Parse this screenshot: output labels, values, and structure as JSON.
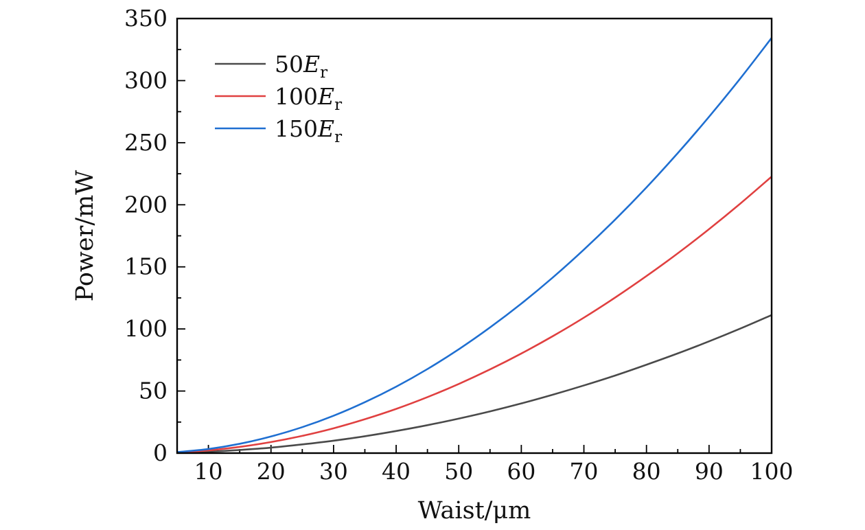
{
  "chart_data": {
    "type": "line",
    "xlabel": "Waist/μm",
    "ylabel": "Power/mW",
    "xlim": [
      5,
      100
    ],
    "ylim": [
      0,
      350
    ],
    "x_ticks": [
      10,
      20,
      30,
      40,
      50,
      60,
      70,
      80,
      90,
      100
    ],
    "y_ticks": [
      0,
      50,
      100,
      150,
      200,
      250,
      300,
      350
    ],
    "x_minor_step": 5,
    "y_minor_step": 25,
    "grid": false,
    "legend_position": "top-left",
    "x": [
      5,
      10,
      15,
      20,
      25,
      30,
      35,
      40,
      45,
      50,
      55,
      60,
      65,
      70,
      75,
      80,
      85,
      90,
      95,
      100
    ],
    "series": [
      {
        "name_value": "50",
        "name_symbol": "E",
        "name_subscript": "r",
        "color": "#4a4a4a",
        "values": [
          0.3,
          1.1,
          2.5,
          4.4,
          7.0,
          10.0,
          13.6,
          17.8,
          22.5,
          27.8,
          33.6,
          40.0,
          47.0,
          54.5,
          62.5,
          71.2,
          80.3,
          90.0,
          100.3,
          111.2
        ]
      },
      {
        "name_value": "100",
        "name_symbol": "E",
        "name_subscript": "r",
        "color": "#e04040",
        "values": [
          0.6,
          2.2,
          5.0,
          8.9,
          13.9,
          20.0,
          27.3,
          35.6,
          45.1,
          55.7,
          67.4,
          80.2,
          94.1,
          109.1,
          125.3,
          142.6,
          160.9,
          180.4,
          201.0,
          222.7
        ]
      },
      {
        "name_value": "150",
        "name_symbol": "E",
        "name_subscript": "r",
        "color": "#1f6fd1",
        "values": [
          0.8,
          3.3,
          7.5,
          13.4,
          20.9,
          30.1,
          41.0,
          53.5,
          67.7,
          83.6,
          101.2,
          120.4,
          141.3,
          163.9,
          188.1,
          214.0,
          241.6,
          270.9,
          301.8,
          334.4
        ]
      }
    ]
  }
}
